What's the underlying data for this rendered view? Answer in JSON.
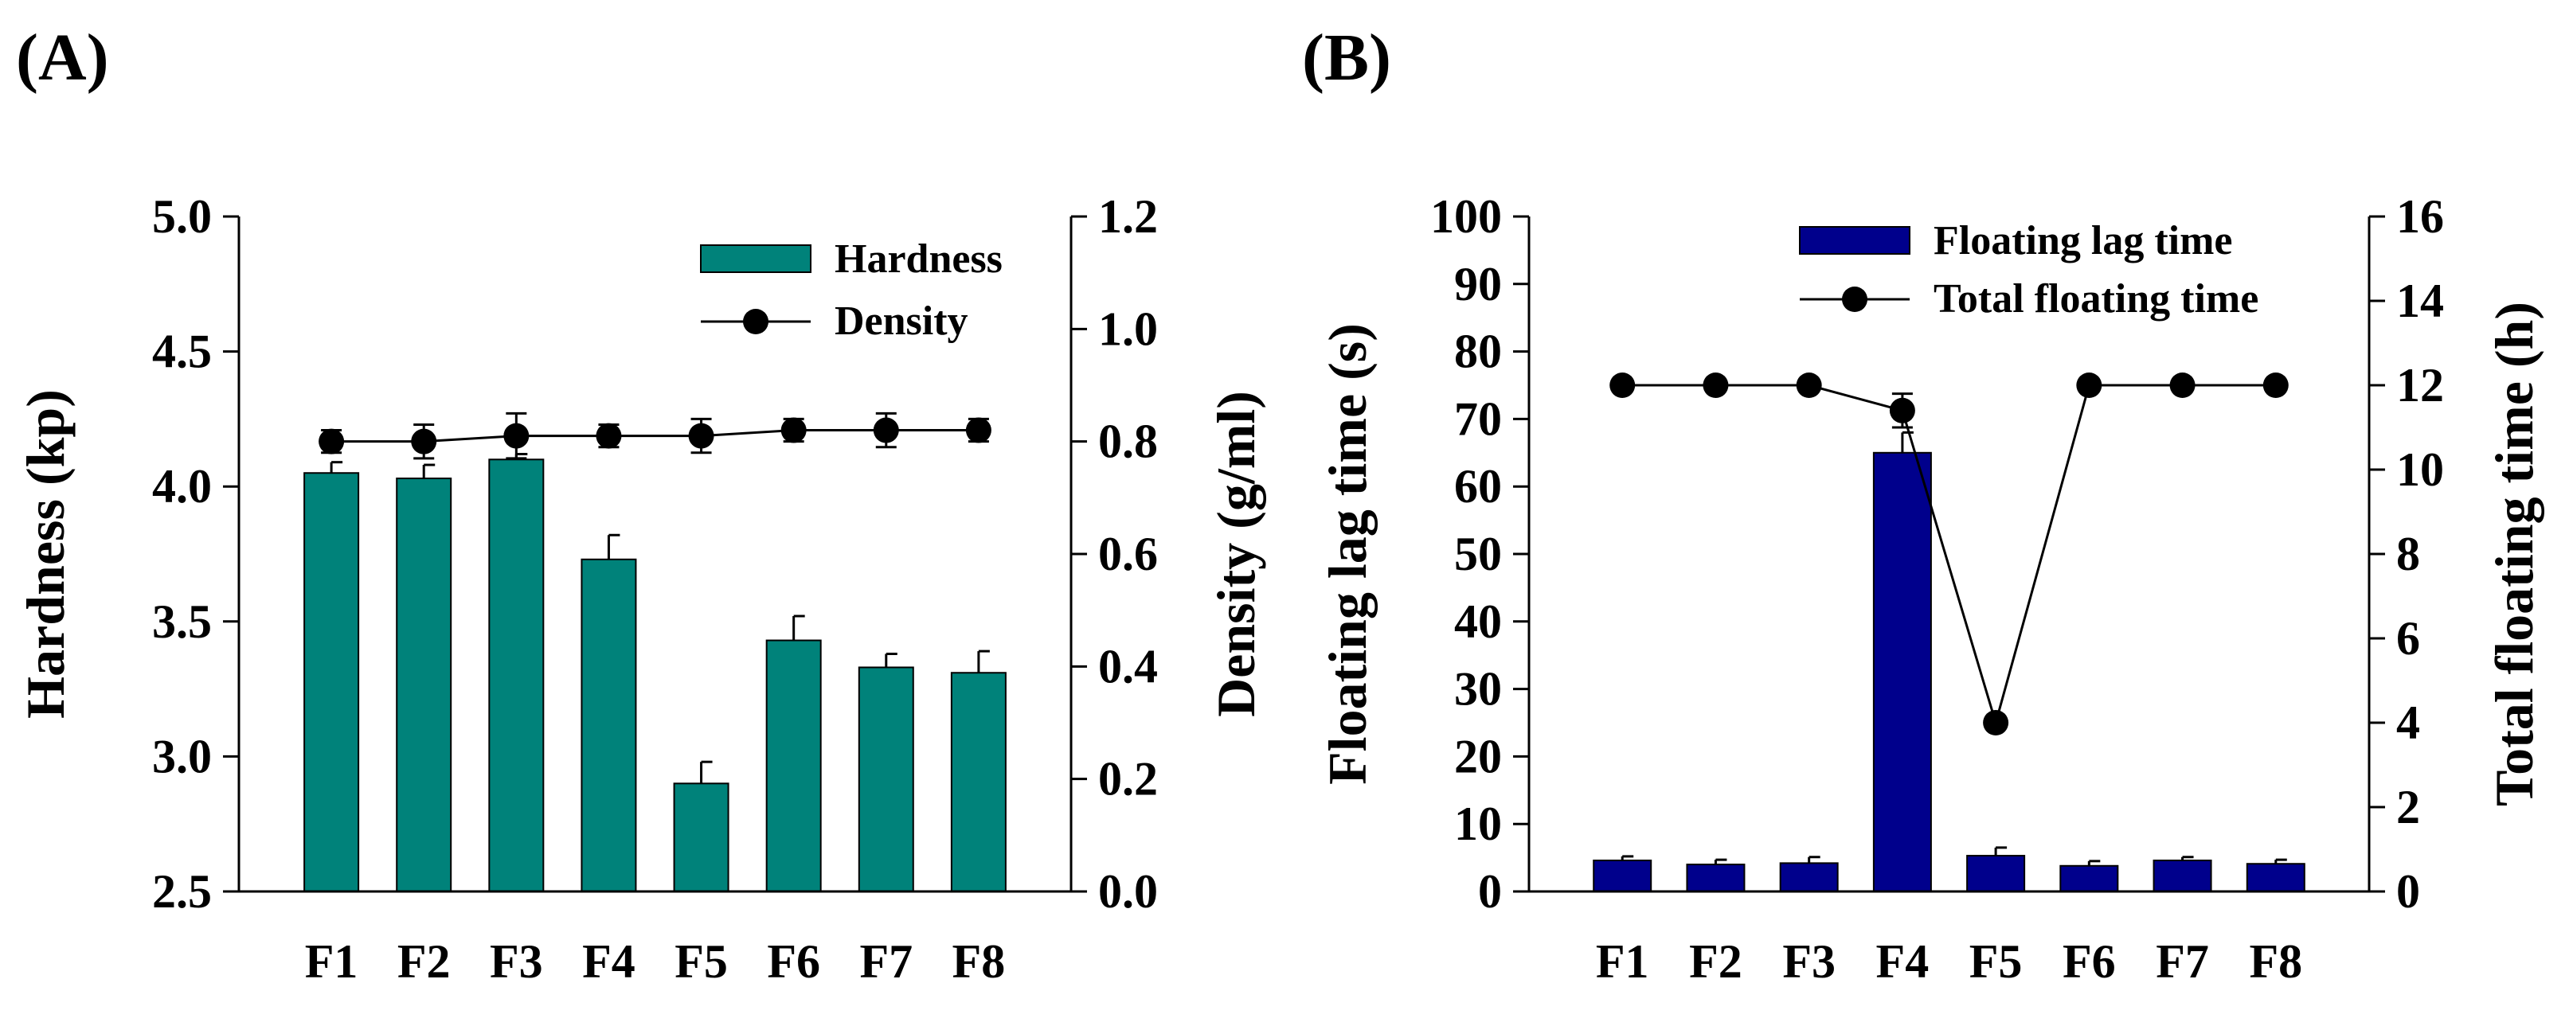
{
  "chart_data": [
    {
      "panel_label": "(A)",
      "type": "bar+line",
      "categories": [
        "F1",
        "F2",
        "F3",
        "F4",
        "F5",
        "F6",
        "F7",
        "F8"
      ],
      "ylabel": "Hardness (kp)",
      "y2label": "Density (g/ml)",
      "ylim": [
        2.5,
        5.0
      ],
      "y2lim": [
        0.0,
        1.2
      ],
      "yticks": [
        "2.5",
        "3.0",
        "3.5",
        "4.0",
        "4.5",
        "5.0"
      ],
      "y2ticks": [
        "0.0",
        "0.2",
        "0.4",
        "0.6",
        "0.8",
        "1.0",
        "1.2"
      ],
      "legend_position": "top-right",
      "grid": false,
      "bar_series": {
        "name": "Hardness",
        "color": "#00827a",
        "values": [
          4.05,
          4.03,
          4.1,
          3.73,
          2.9,
          3.43,
          3.33,
          3.31
        ],
        "errors": [
          0.04,
          0.05,
          0.02,
          0.09,
          0.08,
          0.09,
          0.05,
          0.08
        ]
      },
      "line_series": {
        "name": "Density",
        "color": "#000000",
        "values": [
          0.8,
          0.8,
          0.81,
          0.81,
          0.81,
          0.82,
          0.82,
          0.82
        ],
        "errors": [
          0.02,
          0.03,
          0.04,
          0.02,
          0.03,
          0.02,
          0.03,
          0.02
        ]
      }
    },
    {
      "panel_label": "(B)",
      "type": "bar+line",
      "categories": [
        "F1",
        "F2",
        "F3",
        "F4",
        "F5",
        "F6",
        "F7",
        "F8"
      ],
      "ylabel": "Floating lag time (s)",
      "y2label": "Total floating time (h)",
      "ylim": [
        0,
        100
      ],
      "y2lim": [
        0,
        16
      ],
      "yticks": [
        "0",
        "10",
        "20",
        "30",
        "40",
        "50",
        "60",
        "70",
        "80",
        "90",
        "100"
      ],
      "y2ticks": [
        "0",
        "2",
        "4",
        "6",
        "8",
        "10",
        "12",
        "14",
        "16"
      ],
      "legend_position": "top-right",
      "grid": false,
      "bar_series": {
        "name": "Floating lag time",
        "color": "#00008c",
        "values": [
          4.6,
          4.0,
          4.2,
          65.0,
          5.3,
          3.8,
          4.6,
          4.1
        ],
        "errors": [
          0.6,
          0.7,
          0.9,
          3.0,
          1.2,
          0.7,
          0.5,
          0.6
        ]
      },
      "line_series": {
        "name": "Total floating time",
        "color": "#000000",
        "values": [
          12,
          12,
          12,
          11.4,
          4,
          12,
          12,
          12
        ],
        "errors": [
          0,
          0,
          0,
          0.4,
          0,
          0,
          0,
          0
        ]
      }
    }
  ]
}
